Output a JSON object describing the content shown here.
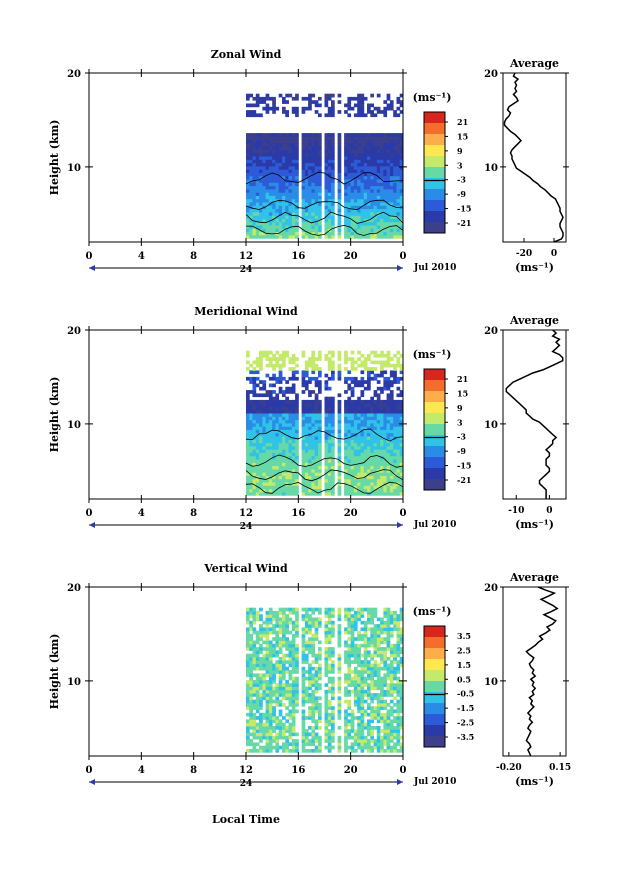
{
  "day_label": "24",
  "month_label": "Jul 2010",
  "xlabel_bottom": "Local Time",
  "chart_data": [
    {
      "type": "heatmap",
      "name": "zonal",
      "title": "Zonal Wind",
      "ylabel": "Height (km)",
      "ylim": [
        2,
        20
      ],
      "yticks": [
        10,
        20
      ],
      "xlim": [
        0,
        24
      ],
      "xticks": [
        "0",
        "4",
        "8",
        "12",
        "16",
        "20",
        "0"
      ],
      "unit": "(ms⁻¹)",
      "colorbar_ticks": [
        "21",
        "15",
        "9",
        "3",
        "-3",
        "-9",
        "-15",
        "-21"
      ],
      "contours": true,
      "data_time_range": [
        12,
        24
      ],
      "gaps": [
        16.0,
        16.2,
        17.7,
        17.9,
        18.6,
        18.8,
        19.2,
        19.5
      ],
      "profile_x": [
        0,
        5,
        6,
        6,
        5,
        4,
        4,
        5,
        6,
        5,
        4,
        4,
        3,
        2,
        1,
        -2,
        -4,
        -6,
        -9,
        -11,
        -14,
        -16,
        -19,
        -22,
        -25,
        -26,
        -27,
        -28,
        -28,
        -29,
        -28,
        -26,
        -24,
        -22,
        -24,
        -26,
        -29,
        -31,
        -33,
        -33,
        -32,
        -30,
        -29,
        -31,
        -30,
        -27,
        -24,
        -25,
        -27,
        -25,
        -26,
        -25,
        -26,
        -24,
        -27,
        -26
      ],
      "average": {
        "title": "Average",
        "xticks": [
          "-20",
          "0"
        ],
        "xlim": [
          -34,
          8
        ],
        "unit": "(ms⁻¹)"
      }
    },
    {
      "type": "heatmap",
      "name": "meridional",
      "title": "Meridional Wind",
      "ylabel": "Height (km)",
      "ylim": [
        2,
        20
      ],
      "yticks": [
        10,
        20
      ],
      "xlim": [
        0,
        24
      ],
      "xticks": [
        "0",
        "4",
        "8",
        "12",
        "16",
        "20",
        "0"
      ],
      "unit": "(ms⁻¹)",
      "colorbar_ticks": [
        "21",
        "15",
        "9",
        "3",
        "-3",
        "-9",
        "-15",
        "-21"
      ],
      "contours": true,
      "data_time_range": [
        12,
        24
      ],
      "gaps": [
        16.0,
        16.2,
        17.7,
        17.9,
        18.6,
        18.8,
        19.2,
        19.5
      ],
      "profile_x": [
        -1,
        -1,
        -1,
        -1,
        -2,
        -3,
        -3,
        -2,
        -1,
        0,
        0,
        -1,
        -1,
        -1,
        0,
        0,
        -1,
        0,
        1,
        1,
        2,
        1,
        0,
        -1,
        -2,
        -3,
        -5,
        -6,
        -7,
        -7,
        -8,
        -9,
        -10,
        -11,
        -12,
        -13,
        -13,
        -12,
        -11,
        -9,
        -7,
        -5,
        -2,
        0,
        2,
        4,
        4,
        3,
        1,
        2,
        3,
        2,
        3,
        1,
        2,
        1
      ],
      "average": {
        "title": "Average",
        "xticks": [
          "-10",
          "0"
        ],
        "xlim": [
          -14,
          5
        ],
        "unit": "(ms⁻¹)"
      }
    },
    {
      "type": "heatmap",
      "name": "vertical",
      "title": "Vertical Wind",
      "ylabel": "Height (km)",
      "ylim": [
        2,
        20
      ],
      "yticks": [
        10,
        20
      ],
      "xlim": [
        0,
        24
      ],
      "xticks": [
        "0",
        "4",
        "8",
        "12",
        "16",
        "20",
        "0"
      ],
      "unit": "(ms⁻¹)",
      "colorbar_ticks": [
        "3.5",
        "2.5",
        "1.5",
        "0.5",
        "-0.5",
        "-1.5",
        "-2.5",
        "-3.5"
      ],
      "contours": false,
      "data_time_range": [
        12,
        24
      ],
      "gaps": [
        16.0,
        16.2,
        17.7,
        17.9,
        18.6,
        18.8,
        19.2,
        19.5
      ],
      "profile_x": [
        -0.05,
        -0.06,
        -0.07,
        -0.05,
        -0.06,
        -0.08,
        -0.07,
        -0.06,
        -0.05,
        -0.07,
        -0.06,
        -0.04,
        -0.06,
        -0.05,
        -0.07,
        -0.05,
        -0.03,
        -0.05,
        -0.04,
        -0.06,
        -0.03,
        -0.04,
        -0.02,
        -0.04,
        -0.03,
        -0.05,
        -0.02,
        -0.04,
        -0.03,
        -0.05,
        -0.06,
        -0.04,
        -0.03,
        -0.06,
        -0.08,
        -0.05,
        -0.02,
        0.0,
        0.03,
        0.01,
        0.05,
        0.08,
        0.06,
        0.1,
        0.12,
        0.08,
        0.04,
        0.09,
        0.13,
        0.1,
        0.06,
        0.02,
        0.07,
        0.11,
        0.05,
        0.0
      ],
      "average": {
        "title": "Average",
        "xticks": [
          "-0.20",
          "0.15"
        ],
        "xlim": [
          -0.24,
          0.19
        ],
        "unit": "(ms⁻¹)"
      }
    }
  ]
}
